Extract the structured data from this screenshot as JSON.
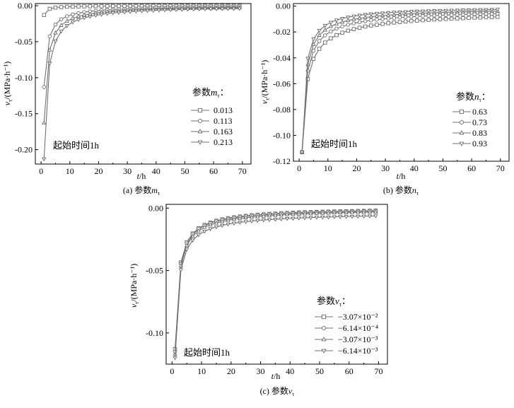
{
  "chart_data": [
    {
      "id": "a",
      "type": "line",
      "caption_prefix": "(a)",
      "caption": "参数",
      "caption_symbol": "m",
      "caption_sub": "τ",
      "xlabel_var": "t",
      "xlabel_unit": "/h",
      "ylabel_var": "v",
      "ylabel_sub": "τ",
      "ylabel_unit": "/(MPa·h⁻¹)",
      "xlim": [
        -2,
        73
      ],
      "ylim": [
        -0.22,
        0.003
      ],
      "xticks": [
        0,
        10,
        20,
        30,
        40,
        50,
        60,
        70
      ],
      "yticks": [
        0.0,
        -0.05,
        -0.1,
        -0.15,
        -0.2
      ],
      "ytick_labels": [
        "0.00",
        "-0.05",
        "-0.10",
        "-0.15",
        "-0.20"
      ],
      "annotation": "起始时间1h",
      "legend_title": "参数",
      "legend_symbol": "m",
      "legend_sub": "τ",
      "legend_suffix": "：",
      "legend_position": "right",
      "x": [
        1,
        3,
        5,
        7,
        9,
        11,
        13,
        15,
        17,
        19,
        21,
        23,
        25,
        27,
        29,
        31,
        33,
        35,
        37,
        39,
        41,
        43,
        45,
        47,
        49,
        51,
        53,
        55,
        57,
        59,
        61,
        63,
        65,
        67,
        69
      ],
      "series": [
        {
          "name": "0.013",
          "marker": "square",
          "values": [
            -0.013,
            -0.0043,
            -0.0026,
            -0.0019,
            -0.0014,
            -0.0012,
            -0.001,
            -0.0009,
            -0.0008,
            -0.0007,
            -0.0006,
            -0.0006,
            -0.0005,
            -0.0005,
            -0.0004,
            -0.0004,
            -0.0004,
            -0.0004,
            -0.0004,
            -0.0003,
            -0.0003,
            -0.0003,
            -0.0003,
            -0.0003,
            -0.0003,
            -0.0003,
            -0.0002,
            -0.0002,
            -0.0002,
            -0.0002,
            -0.0002,
            -0.0002,
            -0.0002,
            -0.0002,
            -0.0002
          ]
        },
        {
          "name": "0.113",
          "marker": "circle",
          "values": [
            -0.113,
            -0.0425,
            -0.0261,
            -0.0188,
            -0.0147,
            -0.0121,
            -0.0103,
            -0.0089,
            -0.0079,
            -0.0071,
            -0.0064,
            -0.0058,
            -0.0054,
            -0.005,
            -0.0046,
            -0.0043,
            -0.0041,
            -0.0039,
            -0.0037,
            -0.0035,
            -0.0033,
            -0.0032,
            -0.003,
            -0.0029,
            -0.0028,
            -0.0027,
            -0.0026,
            -0.0025,
            -0.0024,
            -0.0023,
            -0.0023,
            -0.0022,
            -0.0021,
            -0.0021,
            -0.002
          ]
        },
        {
          "name": "0.163",
          "marker": "triangle-up",
          "values": [
            -0.163,
            -0.0613,
            -0.0377,
            -0.0272,
            -0.0213,
            -0.0175,
            -0.0148,
            -0.0129,
            -0.0114,
            -0.0102,
            -0.0092,
            -0.0084,
            -0.0077,
            -0.0072,
            -0.0067,
            -0.0063,
            -0.0059,
            -0.0056,
            -0.0053,
            -0.005,
            -0.0048,
            -0.0046,
            -0.0044,
            -0.0042,
            -0.004,
            -0.0039,
            -0.0037,
            -0.0036,
            -0.0035,
            -0.0034,
            -0.0033,
            -0.0032,
            -0.0031,
            -0.003,
            -0.0029
          ]
        },
        {
          "name": "0.213",
          "marker": "triangle-down",
          "values": [
            -0.213,
            -0.0801,
            -0.0493,
            -0.0355,
            -0.0278,
            -0.0228,
            -0.0194,
            -0.0168,
            -0.0149,
            -0.0133,
            -0.0121,
            -0.011,
            -0.0101,
            -0.0094,
            -0.0088,
            -0.0082,
            -0.0077,
            -0.0073,
            -0.0069,
            -0.0066,
            -0.0062,
            -0.006,
            -0.0057,
            -0.0055,
            -0.0053,
            -0.0051,
            -0.0049,
            -0.0047,
            -0.0046,
            -0.0044,
            -0.0043,
            -0.0042,
            -0.0041,
            -0.004,
            -0.0039
          ]
        }
      ]
    },
    {
      "id": "b",
      "type": "line",
      "caption_prefix": "(b)",
      "caption": "参数",
      "caption_symbol": "n",
      "caption_sub": "τ",
      "xlabel_var": "t",
      "xlabel_unit": "/h",
      "ylabel_var": "v",
      "ylabel_sub": "τ",
      "ylabel_unit": "/(MPa·h⁻¹)",
      "xlim": [
        -2,
        73
      ],
      "ylim": [
        -0.12,
        0.002
      ],
      "xticks": [
        0,
        10,
        20,
        30,
        40,
        50,
        60,
        70
      ],
      "yticks": [
        0.0,
        -0.02,
        -0.04,
        -0.06,
        -0.08,
        -0.1,
        -0.12
      ],
      "ytick_labels": [
        "0.00",
        "-0.02",
        "-0.04",
        "-0.06",
        "-0.08",
        "-0.10",
        "-0.12"
      ],
      "annotation": "起始时间1h",
      "legend_title": "参数",
      "legend_symbol": "n",
      "legend_sub": "τ",
      "legend_suffix": "：",
      "legend_position": "right",
      "x": [
        1,
        3,
        5,
        7,
        9,
        11,
        13,
        15,
        17,
        19,
        21,
        23,
        25,
        27,
        29,
        31,
        33,
        35,
        37,
        39,
        41,
        43,
        45,
        47,
        49,
        51,
        53,
        55,
        57,
        59,
        61,
        63,
        65,
        67,
        69
      ],
      "series": [
        {
          "name": "0.63",
          "marker": "square",
          "values": [
            -0.113,
            -0.0565,
            -0.0408,
            -0.033,
            -0.0282,
            -0.0249,
            -0.0224,
            -0.0205,
            -0.019,
            -0.0178,
            -0.0167,
            -0.0158,
            -0.015,
            -0.0144,
            -0.0138,
            -0.0132,
            -0.0127,
            -0.0123,
            -0.0119,
            -0.0115,
            -0.0112,
            -0.0109,
            -0.0106,
            -0.0103,
            -0.0101,
            -0.0099,
            -0.0097,
            -0.0095,
            -0.0093,
            -0.0091,
            -0.0089,
            -0.0088,
            -0.0086,
            -0.0085,
            -0.0083
          ]
        },
        {
          "name": "0.73",
          "marker": "circle",
          "values": [
            -0.113,
            -0.05,
            -0.0345,
            -0.027,
            -0.0226,
            -0.0196,
            -0.0174,
            -0.0157,
            -0.0144,
            -0.0133,
            -0.0124,
            -0.0117,
            -0.011,
            -0.0105,
            -0.01,
            -0.0096,
            -0.0092,
            -0.0088,
            -0.0085,
            -0.0082,
            -0.008,
            -0.0077,
            -0.0075,
            -0.0073,
            -0.0071,
            -0.0069,
            -0.0068,
            -0.0066,
            -0.0065,
            -0.0063,
            -0.0062,
            -0.0061,
            -0.006,
            -0.0059,
            -0.0058
          ]
        },
        {
          "name": "0.83",
          "marker": "triangle-up",
          "values": [
            -0.113,
            -0.0451,
            -0.0296,
            -0.0225,
            -0.0184,
            -0.0157,
            -0.0137,
            -0.0123,
            -0.0111,
            -0.0102,
            -0.0094,
            -0.0088,
            -0.0082,
            -0.0077,
            -0.0073,
            -0.007,
            -0.0066,
            -0.0063,
            -0.0061,
            -0.0058,
            -0.0056,
            -0.0054,
            -0.0052,
            -0.0051,
            -0.0049,
            -0.0048,
            -0.0047,
            -0.0045,
            -0.0044,
            -0.0043,
            -0.0042,
            -0.0041,
            -0.004,
            -0.004,
            -0.0039
          ]
        },
        {
          "name": "0.93",
          "marker": "triangle-down",
          "values": [
            -0.113,
            -0.0405,
            -0.0255,
            -0.0189,
            -0.0151,
            -0.0126,
            -0.0109,
            -0.0096,
            -0.0086,
            -0.0078,
            -0.0071,
            -0.0066,
            -0.0061,
            -0.0057,
            -0.0054,
            -0.0051,
            -0.0048,
            -0.0046,
            -0.0044,
            -0.0042,
            -0.004,
            -0.0039,
            -0.0037,
            -0.0036,
            -0.0035,
            -0.0034,
            -0.0033,
            -0.0032,
            -0.0031,
            -0.003,
            -0.0029,
            -0.0028,
            -0.0028,
            -0.0027,
            -0.0026
          ]
        }
      ]
    },
    {
      "id": "c",
      "type": "line",
      "caption_prefix": "(c)",
      "caption": "参数",
      "caption_symbol": "ν",
      "caption_sub": "τ",
      "xlabel_var": "t",
      "xlabel_unit": "/h",
      "ylabel_var": "v",
      "ylabel_sub": "τ",
      "ylabel_unit": "/(MPa·h⁻¹)",
      "xlim": [
        -2,
        73
      ],
      "ylim": [
        -0.125,
        0.003
      ],
      "xticks": [
        0,
        10,
        20,
        30,
        40,
        50,
        60,
        70
      ],
      "yticks": [
        0.0,
        -0.05,
        -0.1
      ],
      "ytick_labels": [
        "0.00",
        "-0.05",
        "-0.10"
      ],
      "annotation": "起始时间1h",
      "legend_title": "参数",
      "legend_symbol": "ν",
      "legend_sub": "τ",
      "legend_suffix": "：",
      "legend_position": "right",
      "x": [
        1,
        3,
        5,
        7,
        9,
        11,
        13,
        15,
        17,
        19,
        21,
        23,
        25,
        27,
        29,
        31,
        33,
        35,
        37,
        39,
        41,
        43,
        45,
        47,
        49,
        51,
        53,
        55,
        57,
        59,
        61,
        63,
        65,
        67,
        69
      ],
      "series": [
        {
          "name": "−3.07×10⁻²",
          "marker": "square",
          "values": [
            -0.113,
            -0.0435,
            -0.0274,
            -0.0203,
            -0.0162,
            -0.0135,
            -0.0116,
            -0.0101,
            -0.009,
            -0.0081,
            -0.0073,
            -0.0067,
            -0.0062,
            -0.0057,
            -0.0053,
            -0.005,
            -0.0046,
            -0.0044,
            -0.0041,
            -0.0039,
            -0.0037,
            -0.0035,
            -0.0033,
            -0.0032,
            -0.003,
            -0.0029,
            -0.0028,
            -0.0027,
            -0.0026,
            -0.0025,
            -0.0024,
            -0.0023,
            -0.0022,
            -0.0021,
            -0.002
          ]
        },
        {
          "name": "−6.14×10⁻⁴",
          "marker": "circle",
          "values": [
            -0.115,
            -0.0446,
            -0.0283,
            -0.021,
            -0.0168,
            -0.0141,
            -0.0121,
            -0.0106,
            -0.0095,
            -0.0086,
            -0.0078,
            -0.0072,
            -0.0066,
            -0.0061,
            -0.0057,
            -0.0054,
            -0.0051,
            -0.0048,
            -0.0045,
            -0.0043,
            -0.0041,
            -0.0039,
            -0.0037,
            -0.0036,
            -0.0034,
            -0.0033,
            -0.0031,
            -0.003,
            -0.0029,
            -0.0028,
            -0.0027,
            -0.0026,
            -0.0025,
            -0.0024,
            -0.0023
          ]
        },
        {
          "name": "−3.07×10⁻³",
          "marker": "triangle-up",
          "values": [
            -0.117,
            -0.0462,
            -0.0298,
            -0.0225,
            -0.0182,
            -0.0154,
            -0.0134,
            -0.0119,
            -0.0107,
            -0.0097,
            -0.0089,
            -0.0083,
            -0.0077,
            -0.0072,
            -0.0068,
            -0.0064,
            -0.0061,
            -0.0058,
            -0.0055,
            -0.0052,
            -0.005,
            -0.0048,
            -0.0046,
            -0.0044,
            -0.0042,
            -0.0041,
            -0.004,
            -0.0038,
            -0.0037,
            -0.0036,
            -0.0035,
            -0.0034,
            -0.0033,
            -0.0032,
            -0.0031
          ]
        },
        {
          "name": "−6.14×10⁻³",
          "marker": "triangle-down",
          "values": [
            -0.12,
            -0.0494,
            -0.033,
            -0.0257,
            -0.0214,
            -0.0186,
            -0.0166,
            -0.0151,
            -0.0139,
            -0.0129,
            -0.0121,
            -0.0115,
            -0.0109,
            -0.0104,
            -0.01,
            -0.0096,
            -0.0093,
            -0.009,
            -0.0087,
            -0.0084,
            -0.0082,
            -0.008,
            -0.0078,
            -0.0076,
            -0.0074,
            -0.0073,
            -0.0072,
            -0.007,
            -0.0069,
            -0.0068,
            -0.0067,
            -0.0066,
            -0.0065,
            -0.0064,
            -0.0063
          ]
        }
      ]
    }
  ]
}
